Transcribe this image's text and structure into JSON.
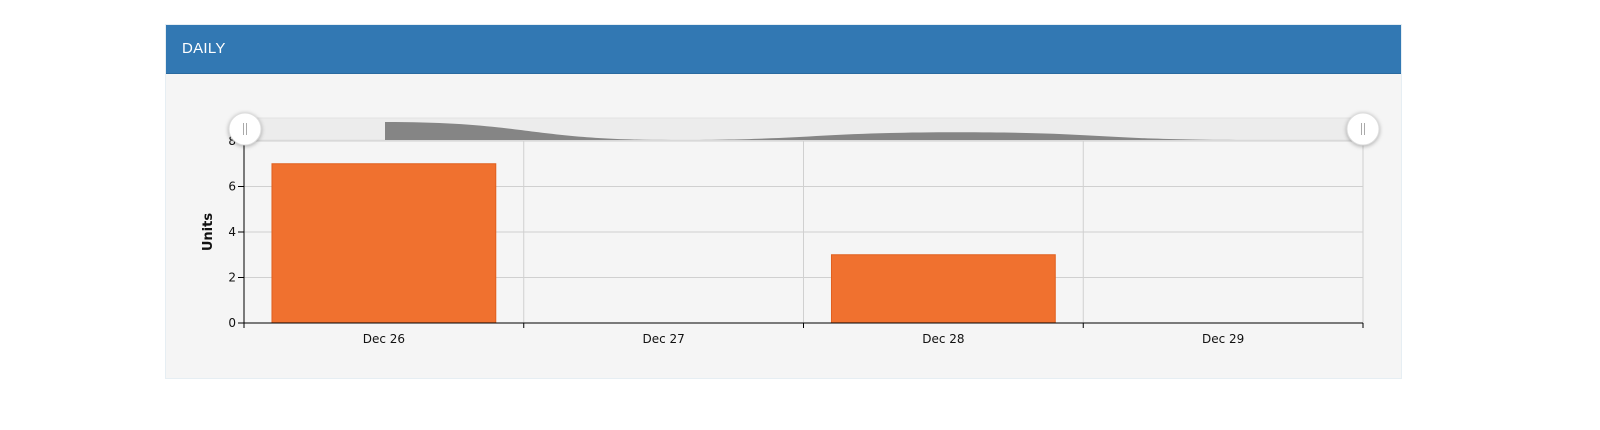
{
  "panel": {
    "title": "DAILY"
  },
  "colors": {
    "bar": "#f0712f",
    "header": "#3278b3",
    "brush_area": "#858585"
  },
  "chart_data": {
    "type": "bar",
    "title": "DAILY",
    "categories": [
      "Dec 26",
      "Dec 27",
      "Dec 28",
      "Dec 29"
    ],
    "values": [
      7,
      0,
      3,
      0
    ],
    "xlabel": "",
    "ylabel": "Units",
    "ylim": [
      0,
      8
    ],
    "yticks": [
      0,
      2,
      4,
      6,
      8
    ],
    "grid": true,
    "legend": "none",
    "brush": {
      "range_start": "Dec 26",
      "range_end": "Dec 29"
    }
  }
}
